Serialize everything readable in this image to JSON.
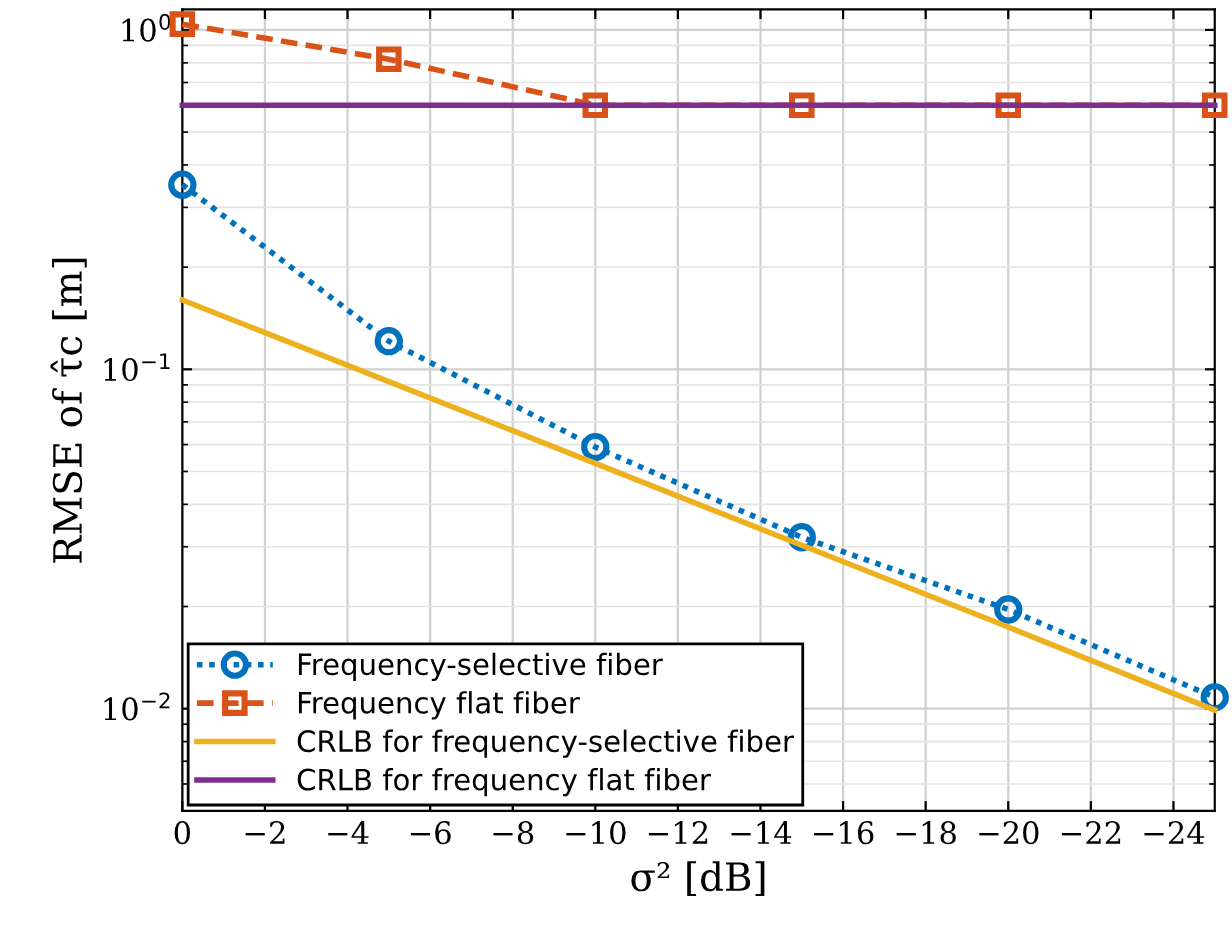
{
  "chart_data": {
    "type": "line",
    "xlabel": "σ² [dB]",
    "ylabel": "RMSE of τ̂c [m]",
    "x": [
      0,
      -5,
      -10,
      -15,
      -20,
      -25
    ],
    "series": [
      {
        "name": "Frequency-selective fiber",
        "color": "#0072bd",
        "values": [
          0.35,
          0.121,
          0.059,
          0.032,
          0.0196,
          0.0108
        ],
        "marker": "circle",
        "line_style": "dotted"
      },
      {
        "name": "Frequency flat fiber",
        "color": "#d95319",
        "values": [
          1.04,
          0.82,
          0.6,
          0.6,
          0.6,
          0.6
        ],
        "marker": "square",
        "line_style": "dashed"
      },
      {
        "name": "CRLB for frequency-selective fiber",
        "color": "#edb120",
        "values": [
          0.16,
          0.092,
          0.0528,
          0.0303,
          0.0174,
          0.0099
        ],
        "marker": "none",
        "line_style": "solid"
      },
      {
        "name": "CRLB for frequency flat fiber",
        "color": "#7e2f8e",
        "values": [
          0.6,
          0.6,
          0.6,
          0.6,
          0.6,
          0.6
        ],
        "marker": "none",
        "line_style": "solid"
      }
    ],
    "log": "y",
    "grid": true,
    "legend": "bottom left",
    "xlim": [
      0,
      -25
    ],
    "xticks": [
      0,
      {
        "value": -2,
        "label": "−2"
      },
      {
        "value": -4,
        "label": "−4"
      },
      {
        "value": -6,
        "label": "−6"
      },
      {
        "value": -8,
        "label": "−8"
      },
      {
        "value": -10,
        "label": "−10"
      },
      {
        "value": -12,
        "label": "−12"
      },
      {
        "value": -14,
        "label": "−14"
      },
      {
        "value": -16,
        "label": "−16"
      },
      {
        "value": -18,
        "label": "−18"
      },
      {
        "value": -20,
        "label": "−20"
      },
      {
        "value": -22,
        "label": "−22"
      },
      {
        "value": -24,
        "label": "−24"
      }
    ],
    "ylim": [
      0.005,
      1.15
    ],
    "yticks": [
      {
        "value": 0.01,
        "label": "10$^{−2}$"
      },
      {
        "value": 0.1,
        "label": "10$^{−1}$"
      },
      {
        "value": 1,
        "label": "10$^{0}$"
      }
    ]
  }
}
